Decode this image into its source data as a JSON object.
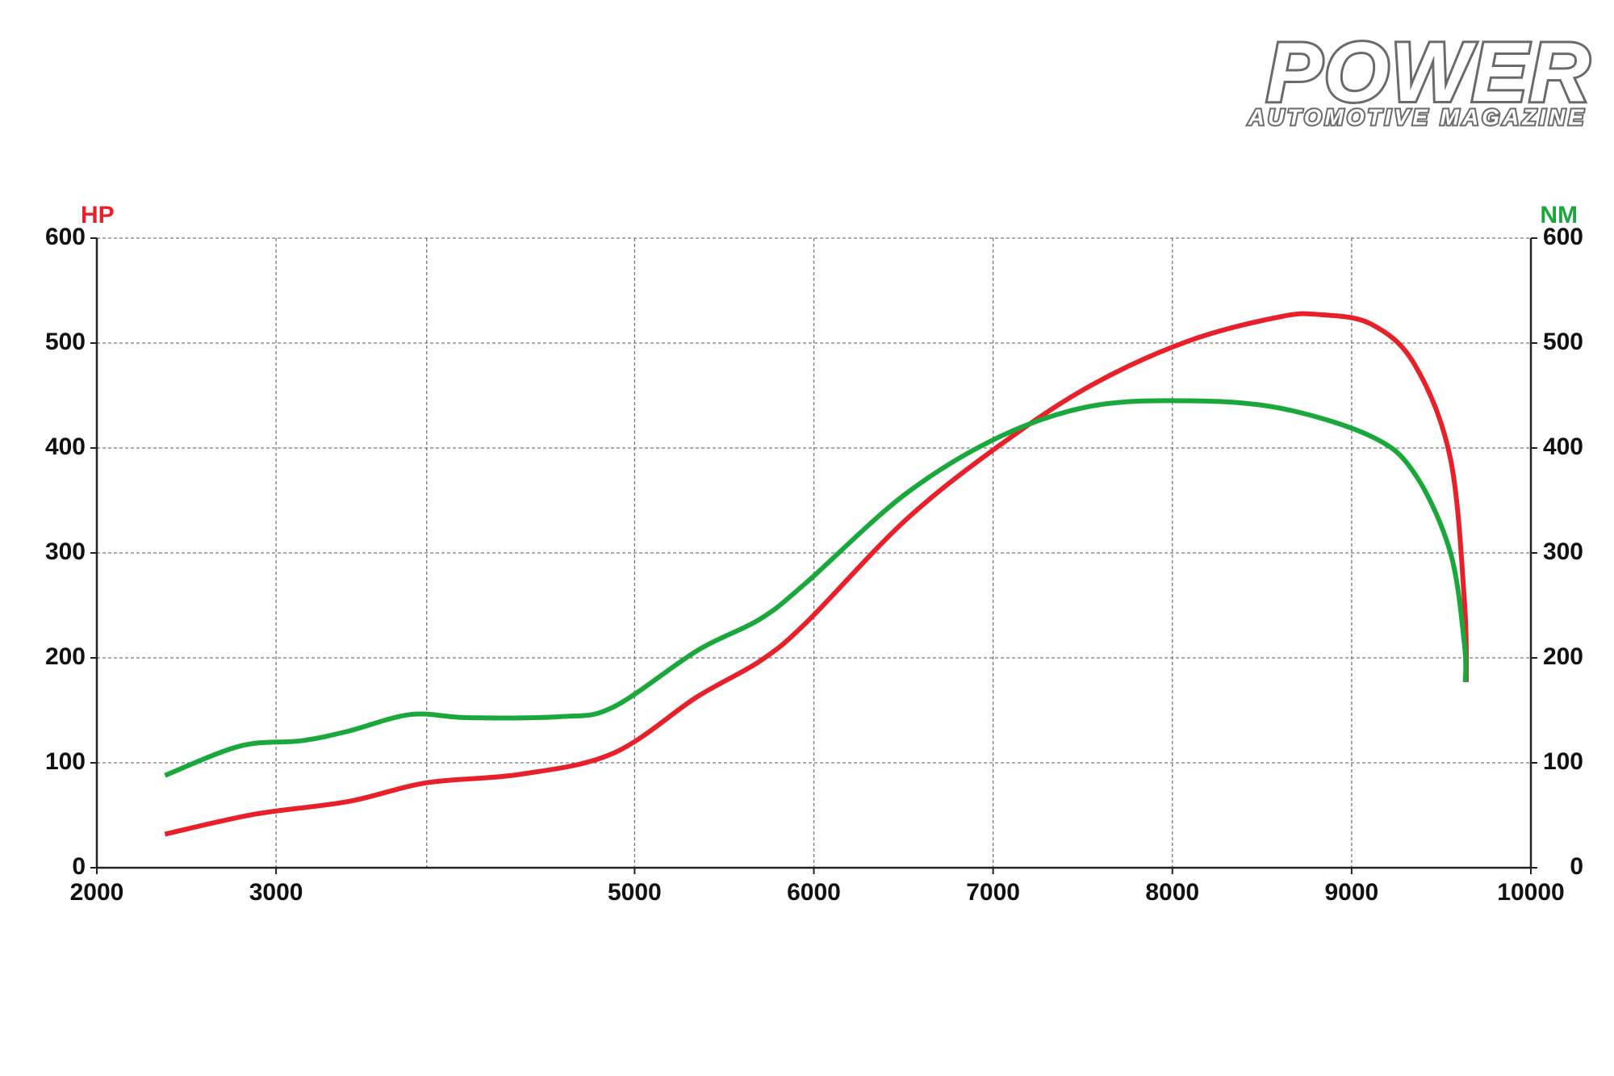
{
  "brand": {
    "name": "POWER",
    "tagline": "AUTOMOTIVE MAGAZINE"
  },
  "chart_data": {
    "type": "line",
    "y_label": "HP",
    "y2_label": "NM",
    "xlim": [
      2000,
      10000
    ],
    "xticks": [
      2000,
      3000,
      5000,
      6000,
      7000,
      8000,
      9000,
      10000
    ],
    "xgrid": [
      3000,
      3840,
      5000,
      6000,
      7000,
      8000,
      9000
    ],
    "ylim": [
      0,
      600
    ],
    "yticks": [
      0,
      100,
      200,
      300,
      400,
      500,
      600
    ],
    "y2lim": [
      0,
      600
    ],
    "y2ticks": [
      0,
      100,
      200,
      300,
      400,
      500,
      600
    ],
    "grid": true,
    "y_label_color": "#e8202a",
    "y2_label_color": "#1aa83c",
    "series": [
      {
        "color": "#e8202a",
        "axis": "y",
        "x": [
          2380,
          2880,
          3400,
          3840,
          4360,
          4880,
          5350,
          5700,
          5960,
          6510,
          7040,
          7550,
          8090,
          8600,
          8830,
          9110,
          9350,
          9550,
          9630,
          9640
        ],
        "values": [
          32,
          51,
          63,
          81,
          89,
          109,
          163,
          197,
          234,
          331,
          403,
          460,
          502,
          525,
          527,
          518,
          480,
          391,
          252,
          177
        ]
      },
      {
        "color": "#1aa83c",
        "axis": "y2",
        "x": [
          2380,
          2800,
          3140,
          3400,
          3750,
          4070,
          4590,
          4880,
          5350,
          5700,
          5960,
          6510,
          7040,
          7550,
          8090,
          8600,
          9110,
          9350,
          9550,
          9630,
          9634
        ],
        "values": [
          88,
          116,
          121,
          130,
          146,
          143,
          144,
          153,
          207,
          237,
          272,
          356,
          411,
          440,
          445,
          438,
          411,
          376,
          301,
          212,
          177
        ]
      }
    ]
  }
}
